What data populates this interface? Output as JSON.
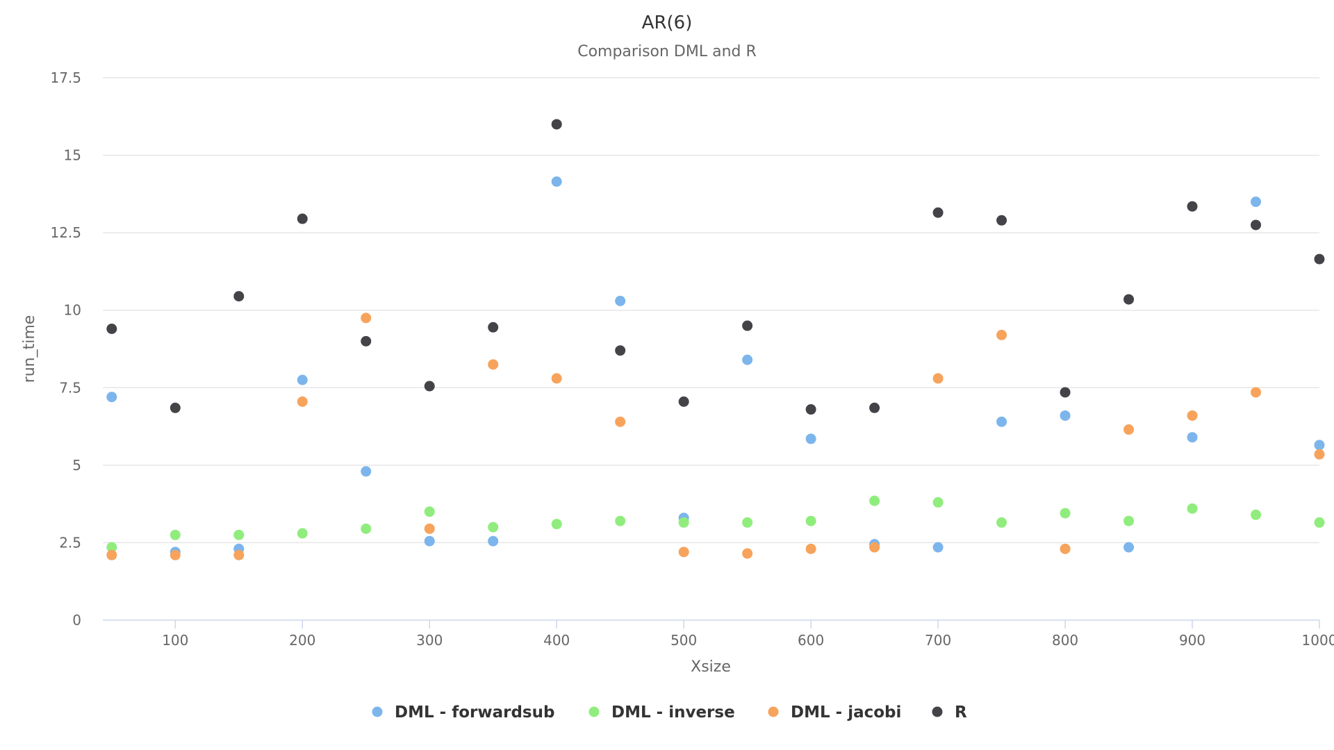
{
  "chart_data": {
    "type": "scatter",
    "title": "AR(6)",
    "subtitle": "Comparison DML and R",
    "xlabel": "Xsize",
    "ylabel": "run_time",
    "xlim": [
      43,
      1000
    ],
    "ylim": [
      0,
      17.5
    ],
    "x_ticks": [
      "100",
      "200",
      "300",
      "400",
      "500",
      "600",
      "700",
      "800",
      "900",
      "1000"
    ],
    "y_ticks": [
      "0",
      "2.5",
      "5",
      "7.5",
      "10",
      "12.5",
      "15",
      "17.5"
    ],
    "grid": true,
    "legend_position": "bottom-center",
    "series": [
      {
        "name": "DML - forwardsub",
        "color": "#7cb5ec",
        "points": [
          [
            50,
            7.2
          ],
          [
            100,
            2.2
          ],
          [
            150,
            2.3
          ],
          [
            200,
            7.75
          ],
          [
            250,
            4.8
          ],
          [
            300,
            2.55
          ],
          [
            350,
            2.55
          ],
          [
            400,
            14.15
          ],
          [
            450,
            10.3
          ],
          [
            500,
            3.3
          ],
          [
            550,
            8.4
          ],
          [
            600,
            5.85
          ],
          [
            650,
            2.45
          ],
          [
            700,
            2.35
          ],
          [
            750,
            6.4
          ],
          [
            800,
            6.6
          ],
          [
            850,
            2.35
          ],
          [
            900,
            5.9
          ],
          [
            950,
            13.5
          ],
          [
            1000,
            5.65
          ]
        ]
      },
      {
        "name": "DML - inverse",
        "color": "#90ed7d",
        "points": [
          [
            50,
            2.35
          ],
          [
            100,
            2.75
          ],
          [
            150,
            2.75
          ],
          [
            200,
            2.8
          ],
          [
            250,
            2.95
          ],
          [
            300,
            3.5
          ],
          [
            350,
            3.0
          ],
          [
            400,
            3.1
          ],
          [
            450,
            3.2
          ],
          [
            500,
            3.15
          ],
          [
            550,
            3.15
          ],
          [
            600,
            3.2
          ],
          [
            650,
            3.85
          ],
          [
            700,
            3.8
          ],
          [
            750,
            3.15
          ],
          [
            800,
            3.45
          ],
          [
            850,
            3.2
          ],
          [
            900,
            3.6
          ],
          [
            950,
            3.4
          ],
          [
            1000,
            3.15
          ]
        ]
      },
      {
        "name": "DML - jacobi",
        "color": "#f7a35c",
        "points": [
          [
            50,
            2.1
          ],
          [
            100,
            2.1
          ],
          [
            150,
            2.1
          ],
          [
            200,
            7.05
          ],
          [
            250,
            9.75
          ],
          [
            300,
            2.95
          ],
          [
            350,
            8.25
          ],
          [
            400,
            7.8
          ],
          [
            450,
            6.4
          ],
          [
            500,
            2.2
          ],
          [
            550,
            2.15
          ],
          [
            600,
            2.3
          ],
          [
            650,
            2.35
          ],
          [
            700,
            7.8
          ],
          [
            750,
            9.2
          ],
          [
            800,
            2.3
          ],
          [
            850,
            6.15
          ],
          [
            900,
            6.6
          ],
          [
            950,
            7.35
          ],
          [
            1000,
            5.35
          ]
        ]
      },
      {
        "name": "R",
        "color": "#434348",
        "points": [
          [
            50,
            9.4
          ],
          [
            100,
            6.85
          ],
          [
            150,
            10.45
          ],
          [
            200,
            12.95
          ],
          [
            250,
            9.0
          ],
          [
            300,
            7.55
          ],
          [
            350,
            9.45
          ],
          [
            400,
            16.0
          ],
          [
            450,
            8.7
          ],
          [
            500,
            7.05
          ],
          [
            550,
            9.5
          ],
          [
            600,
            6.8
          ],
          [
            650,
            6.85
          ],
          [
            700,
            13.15
          ],
          [
            750,
            12.9
          ],
          [
            800,
            7.35
          ],
          [
            850,
            10.35
          ],
          [
            900,
            13.35
          ],
          [
            950,
            12.75
          ],
          [
            1000,
            11.65
          ]
        ]
      }
    ]
  }
}
